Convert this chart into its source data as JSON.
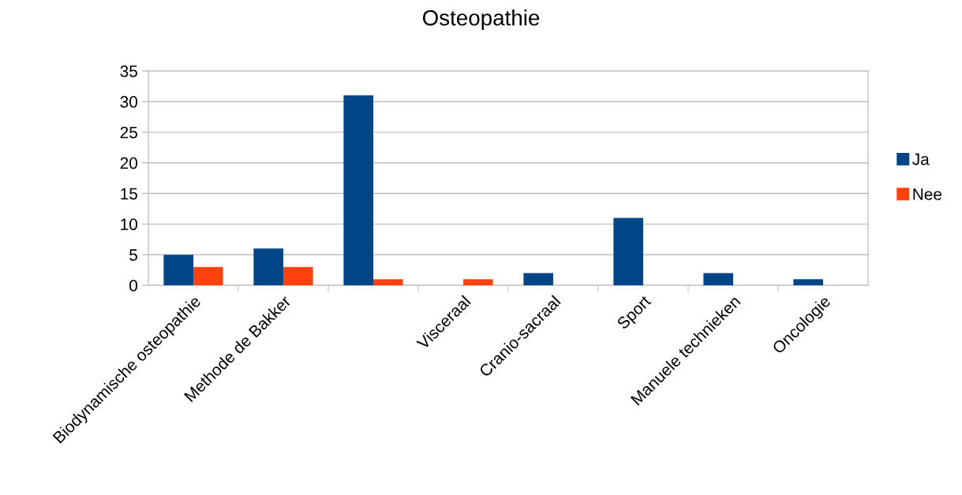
{
  "chart_data": {
    "type": "bar",
    "title": "Osteopathie",
    "categories": [
      "Biodynamische osteopathie",
      "Methode de Bakker",
      null,
      "Visceraal",
      "Cranio-sacraal",
      "Sport",
      "Manuele technieken",
      "Oncologie"
    ],
    "series": [
      {
        "name": "Ja",
        "color": "#004586",
        "values": [
          5,
          6,
          31,
          0,
          2,
          11,
          2,
          1
        ]
      },
      {
        "name": "Nee",
        "color": "#ff420e",
        "values": [
          3,
          3,
          1,
          1,
          0,
          0,
          0,
          0
        ]
      }
    ],
    "ylim": [
      0,
      35
    ],
    "yticks": [
      0,
      5,
      10,
      15,
      20,
      25,
      30,
      35
    ],
    "grid": "y",
    "legend": "right"
  }
}
